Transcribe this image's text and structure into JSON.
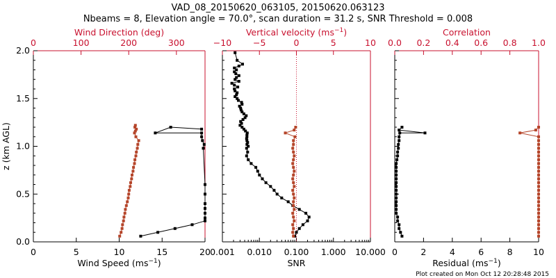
{
  "title": {
    "line1": "VAD_08_20150620_063105, 20150620.063123",
    "line2": "Nbeams = 8, Elevation angle = 70.0°, scan duration = 31.2 s, SNR Threshold = 0.008"
  },
  "footer": "Plot created on Mon Oct 12 20:28:48 2015",
  "colors": {
    "black": "#000000",
    "red": "#c8102e",
    "series_red": "#b5452a"
  },
  "chart_data": [
    {
      "type": "line",
      "panel": "left",
      "ylabel": "z (km AGL)",
      "ylim": [
        0,
        2
      ],
      "yticks": [
        "0.0",
        "0.5",
        "1.0",
        "1.5",
        "2.0"
      ],
      "xlabel_bottom": "Wind Speed (ms⁻¹)",
      "xlim_bottom": [
        0,
        20
      ],
      "xticks_bottom": [
        "0",
        "5",
        "10",
        "15",
        "20"
      ],
      "xlabel_top": "Wind Direction (deg)",
      "xlim_top": [
        0,
        360
      ],
      "xticks_top": [
        "0",
        "100",
        "200",
        "300"
      ],
      "series": [
        {
          "axis": "bottom",
          "color": "black",
          "x": [
            12.5,
            14.5,
            16.5,
            18.5,
            20,
            20,
            20,
            20,
            20,
            20,
            20,
            19.8,
            19.9,
            19.7,
            19.6,
            19.6,
            14.2,
            16,
            19.6
          ],
          "y": [
            0.06,
            0.1,
            0.14,
            0.18,
            0.22,
            0.25,
            0.3,
            0.35,
            0.4,
            0.5,
            0.6,
            0.98,
            1.02,
            1.06,
            1.1,
            1.14,
            1.14,
            1.2,
            1.18
          ]
        },
        {
          "axis": "top",
          "color": "red",
          "x": [
            181,
            184,
            186,
            187,
            189,
            190,
            192,
            193,
            195,
            197,
            199,
            200,
            201,
            203,
            204,
            206,
            207,
            209,
            210,
            212,
            213,
            215,
            216,
            218,
            219,
            221,
            215,
            212,
            214,
            216,
            213,
            214
          ],
          "y": [
            0.06,
            0.1,
            0.14,
            0.18,
            0.22,
            0.26,
            0.3,
            0.34,
            0.38,
            0.42,
            0.46,
            0.5,
            0.54,
            0.58,
            0.62,
            0.66,
            0.7,
            0.74,
            0.78,
            0.82,
            0.86,
            0.9,
            0.94,
            0.98,
            1.02,
            1.06,
            1.1,
            1.14,
            1.16,
            1.18,
            1.2,
            1.22
          ]
        }
      ]
    },
    {
      "type": "line",
      "panel": "middle",
      "xscale": "log",
      "ylim": [
        0,
        2
      ],
      "xlabel_bottom": "SNR",
      "xlim_bottom": [
        0.001,
        10
      ],
      "xticks_bottom": [
        "0.001",
        "0.010",
        "0.100",
        "1.000",
        "10.000"
      ],
      "xlabel_top": "Vertical velocity (ms⁻¹)",
      "xlim_top": [
        -10,
        10
      ],
      "xticks_top": [
        "−10",
        "−5",
        "0",
        "5",
        "10"
      ],
      "reference_line_top_x": 0,
      "series": [
        {
          "axis": "bottom",
          "color": "black",
          "x": [
            0.09,
            0.1,
            0.12,
            0.15,
            0.2,
            0.22,
            0.18,
            0.12,
            0.08,
            0.06,
            0.04,
            0.03,
            0.025,
            0.02,
            0.015,
            0.012,
            0.01,
            0.009,
            0.008,
            0.006,
            0.005,
            0.0045,
            0.0048,
            0.0045,
            0.005,
            0.0046,
            0.0048,
            0.0046,
            0.0045,
            0.0046,
            0.0046,
            0.0047,
            0.0042,
            0.0038,
            0.0034,
            0.003,
            0.0033,
            0.0031,
            0.0036,
            0.0041,
            0.0044,
            0.0038,
            0.0034,
            0.0032,
            0.0031,
            0.0029,
            0.0034,
            0.0033,
            0.0027,
            0.0025,
            0.0022,
            0.0024,
            0.0025,
            0.0022,
            0.0021,
            0.0026,
            0.0021,
            0.0018,
            0.0028,
            0.0022,
            0.0024,
            0.0028,
            0.0023,
            0.0021,
            0.0024,
            0.0021,
            0.0028,
            0.0035,
            0.0025,
            0.0022
          ],
          "y": [
            0.06,
            0.1,
            0.14,
            0.18,
            0.22,
            0.26,
            0.3,
            0.34,
            0.38,
            0.42,
            0.46,
            0.5,
            0.54,
            0.58,
            0.62,
            0.66,
            0.7,
            0.74,
            0.78,
            0.82,
            0.86,
            0.9,
            0.94,
            0.98,
            1.0,
            1.02,
            1.04,
            1.06,
            1.08,
            1.1,
            1.12,
            1.14,
            1.16,
            1.18,
            1.2,
            1.22,
            1.24,
            1.26,
            1.28,
            1.3,
            1.32,
            1.34,
            1.36,
            1.38,
            1.4,
            1.42,
            1.44,
            1.46,
            1.48,
            1.5,
            1.52,
            1.54,
            1.56,
            1.58,
            1.6,
            1.62,
            1.64,
            1.66,
            1.68,
            1.7,
            1.72,
            1.74,
            1.76,
            1.78,
            1.8,
            1.82,
            1.84,
            1.86,
            1.9,
            1.98
          ]
        },
        {
          "axis": "top",
          "color": "red",
          "x": [
            -0.4,
            -0.5,
            -0.4,
            -0.5,
            -0.3,
            -0.4,
            -0.5,
            -0.3,
            -0.4,
            -0.4,
            -0.3,
            -0.4,
            -0.5,
            -0.3,
            -0.4,
            -0.5,
            -0.4,
            -0.3,
            -0.4,
            -0.5,
            -0.4,
            -0.3,
            -0.4,
            -0.5,
            -0.4,
            -0.4,
            -0.2,
            -1.5,
            -0.3,
            -0.1
          ],
          "y": [
            0.06,
            0.1,
            0.14,
            0.18,
            0.22,
            0.26,
            0.3,
            0.34,
            0.38,
            0.42,
            0.46,
            0.5,
            0.54,
            0.58,
            0.62,
            0.66,
            0.7,
            0.74,
            0.78,
            0.82,
            0.86,
            0.9,
            0.94,
            0.98,
            1.02,
            1.06,
            1.1,
            1.14,
            1.17,
            1.2
          ]
        }
      ]
    },
    {
      "type": "line",
      "panel": "right",
      "ylim": [
        0,
        2
      ],
      "xlabel_bottom": "Residual (ms⁻¹)",
      "xlim_bottom": [
        0,
        10
      ],
      "xticks_bottom": [
        "0",
        "2",
        "4",
        "6",
        "8",
        "10"
      ],
      "xlabel_top": "Correlation",
      "xlim_top": [
        0,
        1
      ],
      "xticks_top": [
        "0.0",
        "0.2",
        "0.4",
        "0.6",
        "0.8",
        "1.0"
      ],
      "series": [
        {
          "axis": "bottom",
          "color": "black",
          "x": [
            0.5,
            0.4,
            0.3,
            0.3,
            0.2,
            0.2,
            0.1,
            0.1,
            0.1,
            0.1,
            0.1,
            0.1,
            0.1,
            0.1,
            0.1,
            0.1,
            0.1,
            0.1,
            0.1,
            0.1,
            0.15,
            0.2,
            0.2,
            0.25,
            0.25,
            0.3,
            0.3,
            0.35,
            2.1,
            0.3,
            0.5
          ],
          "y": [
            0.06,
            0.1,
            0.14,
            0.18,
            0.22,
            0.26,
            0.3,
            0.34,
            0.38,
            0.42,
            0.46,
            0.5,
            0.54,
            0.58,
            0.62,
            0.66,
            0.7,
            0.74,
            0.78,
            0.82,
            0.86,
            0.9,
            0.94,
            0.98,
            1.02,
            1.06,
            1.1,
            1.14,
            1.14,
            1.17,
            1.2
          ]
        },
        {
          "axis": "top",
          "color": "red",
          "x": [
            1.0,
            1.0,
            1.0,
            1.0,
            1.0,
            1.0,
            1.0,
            1.0,
            1.0,
            1.0,
            1.0,
            1.0,
            1.0,
            1.0,
            1.0,
            1.0,
            1.0,
            1.0,
            1.0,
            1.0,
            1.0,
            1.0,
            1.0,
            1.0,
            1.0,
            1.0,
            1.0,
            0.87,
            0.98,
            1.0
          ],
          "y": [
            0.06,
            0.1,
            0.14,
            0.18,
            0.22,
            0.26,
            0.3,
            0.34,
            0.38,
            0.42,
            0.46,
            0.5,
            0.54,
            0.58,
            0.62,
            0.66,
            0.7,
            0.74,
            0.78,
            0.82,
            0.86,
            0.9,
            0.94,
            0.98,
            1.02,
            1.06,
            1.1,
            1.14,
            1.17,
            1.2
          ]
        }
      ]
    }
  ]
}
